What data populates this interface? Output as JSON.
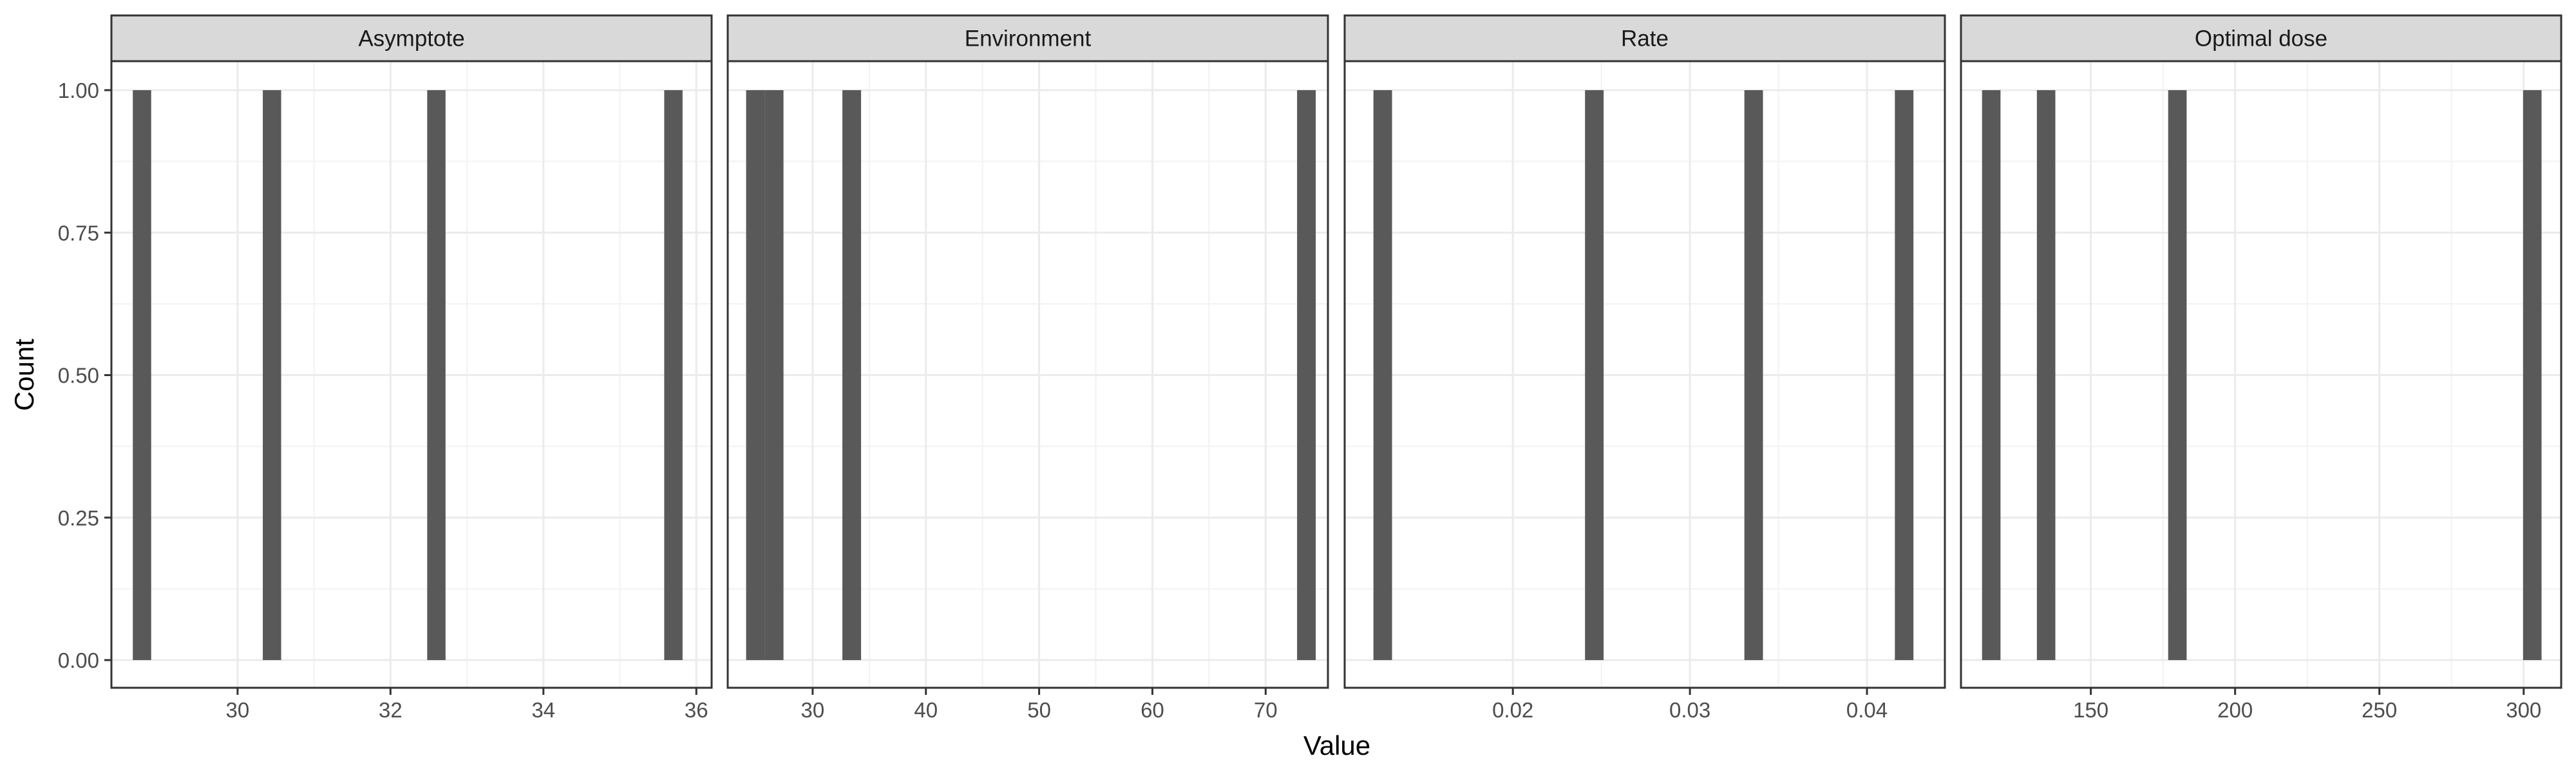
{
  "chart_data": {
    "type": "histogram-facets",
    "xlabel": "Value",
    "ylabel": "Count",
    "ylim": [
      0,
      1.05
    ],
    "y_ticks": [
      0,
      0.25,
      0.5,
      0.75,
      1
    ],
    "y_tick_labels": [
      "0.00",
      "0.25",
      "0.50",
      "0.75",
      "1.00"
    ],
    "grid": true,
    "bar_color": "#595959",
    "strip_color": "#d9d9d9",
    "panels": [
      {
        "title": "Asymptote",
        "xlim": [
          28.35,
          36.2
        ],
        "x_ticks": [
          30,
          32,
          34,
          36
        ],
        "x_tick_labels": [
          "30",
          "32",
          "34",
          "36"
        ],
        "bin_width": 0.24,
        "bars": [
          {
            "x": 28.75,
            "count": 1
          },
          {
            "x": 30.45,
            "count": 1
          },
          {
            "x": 32.6,
            "count": 1
          },
          {
            "x": 35.7,
            "count": 1
          }
        ]
      },
      {
        "title": "Environment",
        "xlim": [
          22.5,
          75.5
        ],
        "x_ticks": [
          30,
          40,
          50,
          60,
          70
        ],
        "x_tick_labels": [
          "30",
          "40",
          "50",
          "60",
          "70"
        ],
        "bin_width": 1.65,
        "bars": [
          {
            "x": 24.95,
            "count": 1
          },
          {
            "x": 26.6,
            "count": 1
          },
          {
            "x": 33.45,
            "count": 1
          },
          {
            "x": 73.6,
            "count": 1
          }
        ]
      },
      {
        "title": "Rate",
        "xlim": [
          0.0105,
          0.0444
        ],
        "x_ticks": [
          0.02,
          0.03,
          0.04
        ],
        "x_tick_labels": [
          "0.02",
          "0.03",
          "0.04"
        ],
        "bin_width": 0.00105,
        "bars": [
          {
            "x": 0.01265,
            "count": 1
          },
          {
            "x": 0.0246,
            "count": 1
          },
          {
            "x": 0.0336,
            "count": 1
          },
          {
            "x": 0.0421,
            "count": 1
          }
        ]
      },
      {
        "title": "Optimal dose",
        "xlim": [
          105,
          313
        ],
        "x_ticks": [
          150,
          200,
          250,
          300
        ],
        "x_tick_labels": [
          "150",
          "200",
          "250",
          "300"
        ],
        "bin_width": 6.4,
        "bars": [
          {
            "x": 115.5,
            "count": 1
          },
          {
            "x": 134.5,
            "count": 1
          },
          {
            "x": 180,
            "count": 1
          },
          {
            "x": 303,
            "count": 1
          }
        ]
      }
    ]
  }
}
